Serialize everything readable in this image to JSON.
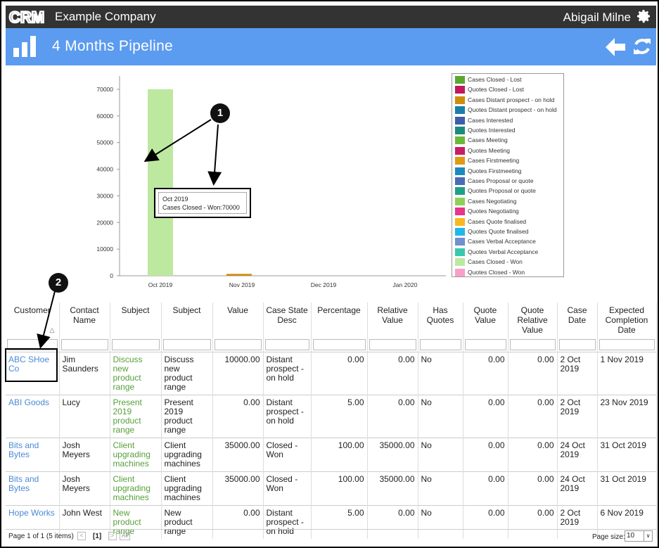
{
  "app": {
    "logo_text": "CRM",
    "company": "Example Company",
    "user": "Abigail Milne"
  },
  "page": {
    "title": "4 Months Pipeline"
  },
  "chart_data": {
    "type": "bar",
    "categories": [
      "Oct 2019",
      "Nov 2019",
      "Dec 2019",
      "Jan 2020"
    ],
    "ylim": [
      0,
      75000
    ],
    "yticks": [
      0,
      10000,
      20000,
      30000,
      40000,
      50000,
      60000,
      70000
    ],
    "series": [
      {
        "name": "Cases Closed - Lost",
        "color": "#5aa832",
        "values": [
          0,
          0,
          0,
          0
        ]
      },
      {
        "name": "Quotes Closed - Lost",
        "color": "#c0185c",
        "values": [
          0,
          0,
          0,
          0
        ]
      },
      {
        "name": "Cases Distant prospect - on hold",
        "color": "#d08c0c",
        "values": [
          0,
          700,
          0,
          0
        ]
      },
      {
        "name": "Quotes Distant prospect - on hold",
        "color": "#1a7fa8",
        "values": [
          0,
          0,
          0,
          0
        ]
      },
      {
        "name": "Cases Interested",
        "color": "#3d5ea8",
        "values": [
          0,
          0,
          0,
          0
        ]
      },
      {
        "name": "Quotes Interested",
        "color": "#1c8c7a",
        "values": [
          0,
          0,
          0,
          0
        ]
      },
      {
        "name": "Cases Meeting",
        "color": "#6cb83a",
        "values": [
          0,
          0,
          0,
          0
        ]
      },
      {
        "name": "Quotes Meeting",
        "color": "#c81e64",
        "values": [
          0,
          0,
          0,
          0
        ]
      },
      {
        "name": "Cases Firstmeeting",
        "color": "#e09a14",
        "values": [
          0,
          0,
          0,
          0
        ]
      },
      {
        "name": "Quotes Firstmeeting",
        "color": "#1a8cbc",
        "values": [
          0,
          0,
          0,
          0
        ]
      },
      {
        "name": "Cases Proposal or quote",
        "color": "#4a6cb8",
        "values": [
          0,
          0,
          0,
          0
        ]
      },
      {
        "name": "Quotes Proposal or quote",
        "color": "#20a08a",
        "values": [
          0,
          0,
          0,
          0
        ]
      },
      {
        "name": "Cases Negotiating",
        "color": "#8ed05a",
        "values": [
          0,
          0,
          0,
          0
        ]
      },
      {
        "name": "Quotes Negotiating",
        "color": "#e8348a",
        "values": [
          0,
          0,
          0,
          0
        ]
      },
      {
        "name": "Cases Quote finalised",
        "color": "#f8b820",
        "values": [
          0,
          0,
          0,
          0
        ]
      },
      {
        "name": "Quotes Quote finalised",
        "color": "#20b8e8",
        "values": [
          0,
          0,
          0,
          0
        ]
      },
      {
        "name": "Cases Verbal Acceptance",
        "color": "#7090d0",
        "values": [
          0,
          0,
          0,
          0
        ]
      },
      {
        "name": "Quotes Verbal Acceptance",
        "color": "#38c8b0",
        "values": [
          0,
          0,
          0,
          0
        ]
      },
      {
        "name": "Cases Closed - Won",
        "color": "#bde8a0",
        "values": [
          70000,
          0,
          0,
          0
        ]
      },
      {
        "name": "Quotes Closed - Won",
        "color": "#f8a0c8",
        "values": [
          0,
          0,
          0,
          0
        ]
      }
    ],
    "tooltip": {
      "line1": "Oct 2019",
      "line2": "Cases Closed - Won:70000"
    }
  },
  "callouts": {
    "one": "1",
    "two": "2"
  },
  "grid": {
    "columns": [
      "Customer",
      "Contact Name",
      "Subject",
      "Subject",
      "Value",
      "Case State Desc",
      "Percentage",
      "Relative Value",
      "Has Quotes",
      "Quote Value",
      "Quote Relative Value",
      "Case Date",
      "Expected Completion Date"
    ],
    "sort_indicator": "△",
    "rows": [
      {
        "customer": "ABC SHoe Co",
        "contact": "Jim Saunders",
        "subject_link": "Discuss new product range",
        "subject": "Discuss new product range",
        "value": "10000.00",
        "state": "Distant prospect - on hold",
        "percentage": "0.00",
        "relative": "0.00",
        "has_quotes": "No",
        "quote_value": "0.00",
        "quote_relative": "0.00",
        "case_date": "2 Oct 2019",
        "expected": "1 Nov 2019"
      },
      {
        "customer": "ABI Goods",
        "contact": "Lucy",
        "subject_link": "Present 2019 product range",
        "subject": "Present 2019 product range",
        "value": "0.00",
        "state": "Distant prospect - on hold",
        "percentage": "5.00",
        "relative": "0.00",
        "has_quotes": "No",
        "quote_value": "0.00",
        "quote_relative": "0.00",
        "case_date": "2 Oct 2019",
        "expected": "23 Nov 2019"
      },
      {
        "customer": "Bits and Bytes",
        "contact": "Josh Meyers",
        "subject_link": "Client upgrading machines",
        "subject": "Client upgrading machines",
        "value": "35000.00",
        "state": "Closed - Won",
        "percentage": "100.00",
        "relative": "35000.00",
        "has_quotes": "No",
        "quote_value": "0.00",
        "quote_relative": "0.00",
        "case_date": "24 Oct 2019",
        "expected": "31 Oct 2019"
      },
      {
        "customer": "Bits and Bytes",
        "contact": "Josh Meyers",
        "subject_link": "Client upgrading machines",
        "subject": "Client upgrading machines",
        "value": "35000.00",
        "state": "Closed - Won",
        "percentage": "100.00",
        "relative": "35000.00",
        "has_quotes": "No",
        "quote_value": "0.00",
        "quote_relative": "0.00",
        "case_date": "24 Oct 2019",
        "expected": "31 Oct 2019"
      },
      {
        "customer": "Hope Works",
        "contact": "John West",
        "subject_link": "New product range",
        "subject": "New product range",
        "value": "0.00",
        "state": "Distant prospect - on hold",
        "percentage": "5.00",
        "relative": "0.00",
        "has_quotes": "No",
        "quote_value": "0.00",
        "quote_relative": "0.00",
        "case_date": "2 Oct 2019",
        "expected": "6 Nov 2019"
      }
    ]
  },
  "footer": {
    "pager_info": "Page 1 of 1 (5 items)",
    "prev": "<",
    "current": "[1]",
    "next": ">",
    "all": "All",
    "page_size_label": "Page size:",
    "page_size": "10",
    "dropdown_arrow": "∨"
  },
  "icons": {
    "gear": "gear-icon",
    "chart": "bar-chart-icon",
    "back": "arrow-left-icon",
    "refresh": "refresh-icon"
  }
}
